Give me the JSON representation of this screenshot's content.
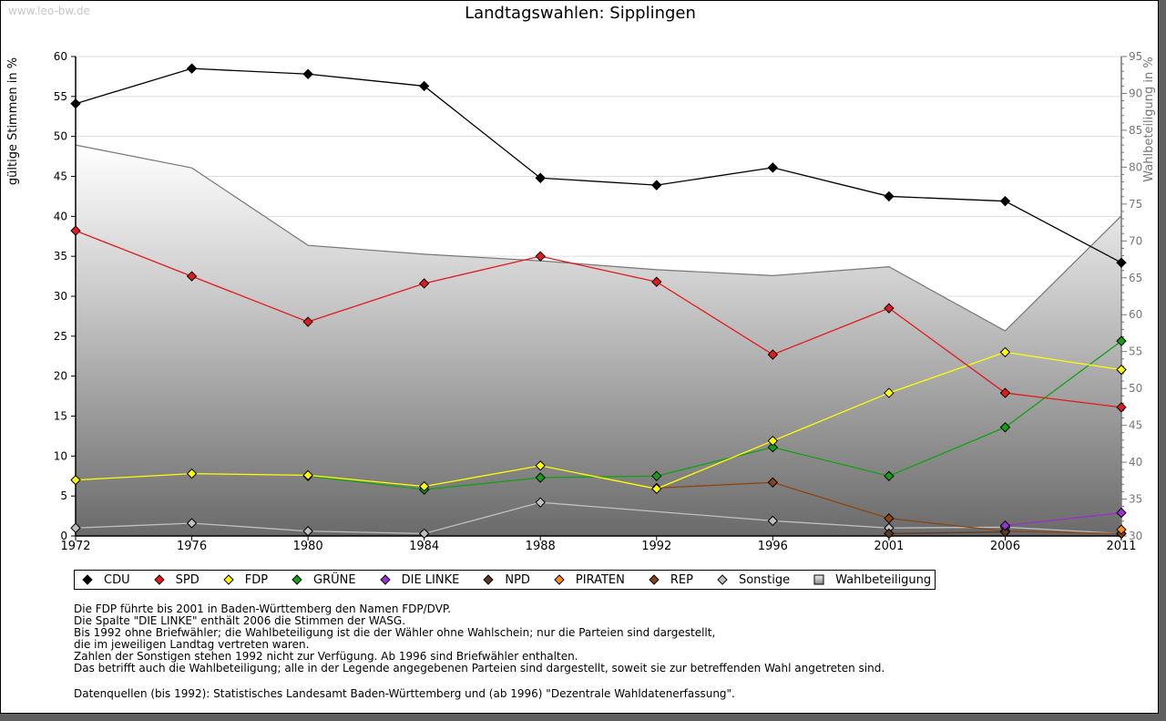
{
  "watermark": "www.leo-bw.de",
  "chart_data": {
    "type": "line",
    "title": "Landtagswahlen: Sipplingen",
    "xlabel": "",
    "ylabel": "gültige Stimmen in %",
    "y2label": "Wahlbeteiligung in %",
    "ylim": [
      0,
      60
    ],
    "y2lim": [
      30,
      95
    ],
    "yticks": [
      0,
      5,
      10,
      15,
      20,
      25,
      30,
      35,
      40,
      45,
      50,
      55,
      60
    ],
    "y2ticks": [
      30,
      35,
      40,
      45,
      50,
      55,
      60,
      65,
      70,
      75,
      80,
      85,
      90,
      95
    ],
    "grid": true,
    "legend_position": "bottom",
    "categories": [
      "1972",
      "1976",
      "1980",
      "1984",
      "1988",
      "1992",
      "1996",
      "2001",
      "2006",
      "2011"
    ],
    "series": [
      {
        "name": "CDU",
        "color": "#000000",
        "axis": "left",
        "values": [
          54.1,
          58.5,
          57.8,
          56.3,
          44.8,
          43.9,
          46.1,
          42.5,
          41.9,
          34.2
        ]
      },
      {
        "name": "SPD",
        "color": "#e31a1c",
        "axis": "left",
        "values": [
          38.2,
          32.5,
          26.8,
          31.6,
          35.0,
          31.8,
          22.7,
          28.5,
          17.9,
          16.1
        ]
      },
      {
        "name": "FDP",
        "color": "#ffff00",
        "axis": "left",
        "values": [
          7.0,
          7.8,
          7.6,
          6.2,
          8.8,
          5.9,
          11.9,
          17.9,
          23.0,
          20.8
        ]
      },
      {
        "name": "GRÜNE",
        "color": "#14a014",
        "axis": "left",
        "values": [
          null,
          null,
          7.5,
          5.8,
          7.3,
          7.5,
          11.1,
          7.5,
          13.6,
          24.4
        ]
      },
      {
        "name": "DIE LINKE",
        "color": "#9932cc",
        "axis": "left",
        "values": [
          null,
          null,
          null,
          null,
          null,
          null,
          null,
          null,
          1.3,
          2.9
        ]
      },
      {
        "name": "NPD",
        "color": "#5c3a21",
        "axis": "left",
        "values": [
          null,
          null,
          null,
          null,
          null,
          null,
          null,
          0.3,
          0.5,
          null
        ]
      },
      {
        "name": "PIRATEN",
        "color": "#ff8c1a",
        "axis": "left",
        "values": [
          null,
          null,
          null,
          null,
          null,
          null,
          null,
          null,
          null,
          0.8
        ]
      },
      {
        "name": "REP",
        "color": "#8b4513",
        "axis": "left",
        "values": [
          null,
          null,
          null,
          null,
          null,
          6.0,
          6.7,
          2.2,
          0.6,
          0.3
        ]
      },
      {
        "name": "Sonstige",
        "color": "#c0c0c0",
        "axis": "left",
        "values": [
          1.0,
          1.6,
          0.6,
          0.3,
          4.2,
          null,
          1.9,
          1.0,
          1.1,
          0.3
        ]
      }
    ],
    "area": {
      "name": "Wahlbeteiligung",
      "axis": "right",
      "values": [
        83.0,
        79.9,
        69.4,
        68.2,
        67.3,
        66.1,
        65.3,
        66.5,
        57.8,
        73.4
      ]
    }
  },
  "legend": [
    {
      "label": "CDU",
      "color": "#000000",
      "shape": "diamond"
    },
    {
      "label": "SPD",
      "color": "#e31a1c",
      "shape": "diamond"
    },
    {
      "label": "FDP",
      "color": "#ffff00",
      "shape": "diamond"
    },
    {
      "label": "GRÜNE",
      "color": "#14a014",
      "shape": "diamond"
    },
    {
      "label": "DIE LINKE",
      "color": "#9932cc",
      "shape": "diamond"
    },
    {
      "label": "NPD",
      "color": "#5c3a21",
      "shape": "diamond"
    },
    {
      "label": "PIRATEN",
      "color": "#ff8c1a",
      "shape": "diamond"
    },
    {
      "label": "REP",
      "color": "#8b4513",
      "shape": "diamond"
    },
    {
      "label": "Sonstige",
      "color": "#c0c0c0",
      "shape": "diamond"
    },
    {
      "label": "Wahlbeteiligung",
      "color": "#aaaaaa",
      "shape": "square"
    }
  ],
  "notes": [
    "Die FDP führte bis 2001 in Baden-Württemberg den Namen FDP/DVP.",
    "Die Spalte \"DIE LINKE\" enthält 2006 die Stimmen der WASG.",
    "Bis 1992 ohne Briefwähler; die Wahlbeteiligung ist die der Wähler ohne Wahlschein; nur die Parteien sind dargestellt,",
    "die im jeweiligen Landtag vertreten waren.",
    "Zahlen der Sonstigen stehen 1992 nicht zur Verfügung. Ab 1996 sind Briefwähler enthalten.",
    "Das betrifft auch die Wahlbeteiligung; alle in der Legende angegebenen Parteien sind dargestellt, soweit sie zur betreffenden Wahl angetreten sind."
  ],
  "source": "Datenquellen (bis 1992): Statistisches Landesamt Baden-Württemberg und (ab 1996) \"Dezentrale Wahldatenerfassung\"."
}
